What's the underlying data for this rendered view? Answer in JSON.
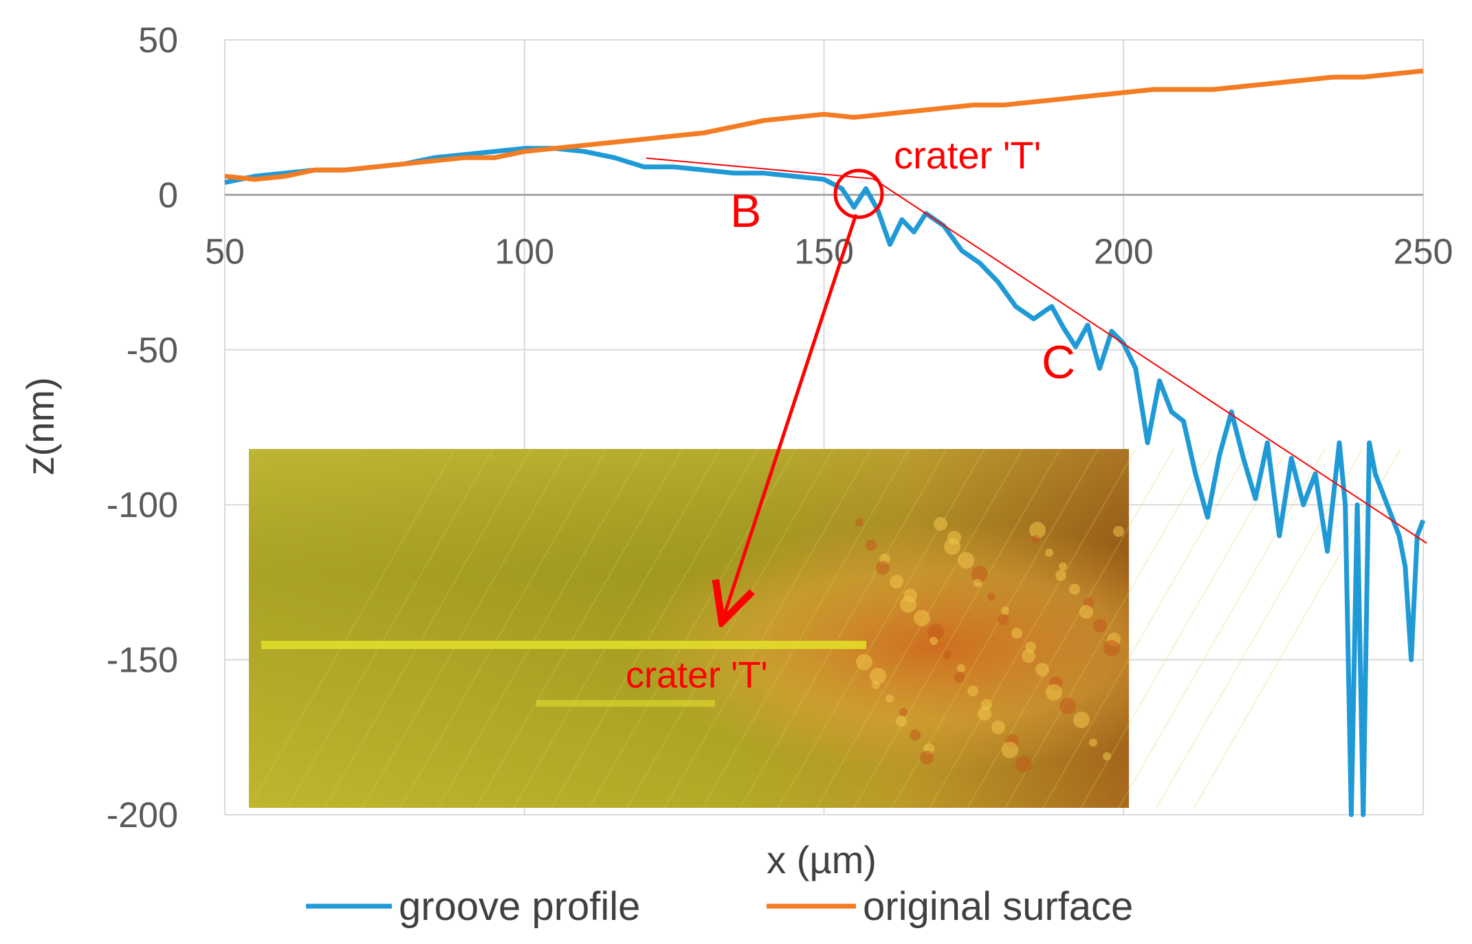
{
  "chart_data": {
    "type": "line",
    "title": "",
    "xlabel": "x (µm)",
    "ylabel": "z(nm)",
    "xlim": [
      50,
      250
    ],
    "ylim": [
      -200,
      50
    ],
    "xticks": [
      50,
      100,
      150,
      200,
      250
    ],
    "yticks": [
      50,
      0,
      -50,
      -100,
      -150,
      -200
    ],
    "grid": true,
    "legend_position": "bottom",
    "series": [
      {
        "name": "groove profile",
        "color": "#1f9ad6",
        "x": [
          50,
          55,
          60,
          65,
          70,
          75,
          80,
          85,
          90,
          95,
          100,
          105,
          110,
          115,
          120,
          125,
          130,
          135,
          140,
          145,
          150,
          153,
          155,
          157,
          159,
          161,
          163,
          165,
          167,
          170,
          173,
          176,
          179,
          182,
          185,
          188,
          190,
          192,
          194,
          196,
          198,
          200,
          202,
          204,
          206,
          208,
          210,
          212,
          214,
          216,
          218,
          220,
          222,
          224,
          226,
          228,
          230,
          232,
          234,
          236,
          237,
          238,
          239,
          240,
          241,
          242,
          244,
          246,
          247,
          248,
          249,
          250
        ],
        "y": [
          4,
          6,
          7,
          8,
          8,
          9,
          10,
          12,
          13,
          14,
          15,
          15,
          14,
          12,
          9,
          9,
          8,
          7,
          7,
          6,
          5,
          2,
          -4,
          2,
          -5,
          -16,
          -8,
          -12,
          -6,
          -10,
          -18,
          -22,
          -28,
          -36,
          -40,
          -36,
          -43,
          -49,
          -42,
          -56,
          -44,
          -48,
          -56,
          -80,
          -60,
          -70,
          -73,
          -90,
          -104,
          -84,
          -70,
          -85,
          -98,
          -80,
          -110,
          -85,
          -100,
          -90,
          -115,
          -80,
          -100,
          -200,
          -100,
          -200,
          -80,
          -90,
          -100,
          -110,
          -120,
          -150,
          -110,
          -105
        ]
      },
      {
        "name": "original surface",
        "color": "#f47c22",
        "x": [
          50,
          55,
          60,
          65,
          70,
          75,
          80,
          85,
          90,
          95,
          100,
          105,
          110,
          115,
          120,
          125,
          130,
          135,
          140,
          145,
          150,
          155,
          160,
          165,
          170,
          175,
          180,
          185,
          190,
          195,
          200,
          205,
          210,
          215,
          220,
          225,
          230,
          235,
          240,
          245,
          250
        ],
        "y": [
          6,
          5,
          6,
          8,
          8,
          9,
          10,
          11,
          12,
          12,
          14,
          15,
          16,
          17,
          18,
          19,
          20,
          22,
          24,
          25,
          26,
          25,
          26,
          27,
          28,
          29,
          29,
          30,
          31,
          32,
          33,
          34,
          34,
          34,
          35,
          36,
          37,
          38,
          38,
          39,
          40
        ]
      }
    ],
    "annotations": [
      {
        "text": "crater 'T'",
        "x": 172,
        "y": 10
      },
      {
        "text": "B",
        "x": 136,
        "y": -6
      },
      {
        "text": "C",
        "x": 188,
        "y": -54
      }
    ],
    "inset_label": "crater 'T'"
  }
}
